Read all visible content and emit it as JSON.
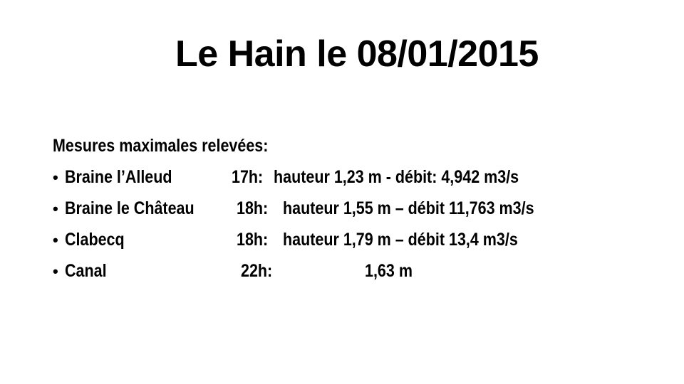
{
  "slide": {
    "title": "Le Hain le 08/01/2015",
    "heading": "Mesures maximales relevées:",
    "bullet_glyph": "•",
    "rows": [
      {
        "station": "Braine l’Alleud",
        "time": "17h:",
        "measure": "hauteur 1,23 m - débit:  4,942 m3/s"
      },
      {
        "station": "Braine le Château",
        "time": "18h:",
        "measure": "hauteur 1,55 m – débit 11,763 m3/s"
      },
      {
        "station": "Clabecq",
        "time": "18h:",
        "measure": "hauteur 1,79 m – débit 13,4 m3/s"
      },
      {
        "station": "Canal",
        "time": "22h:",
        "measure": "1,63 m"
      }
    ]
  }
}
